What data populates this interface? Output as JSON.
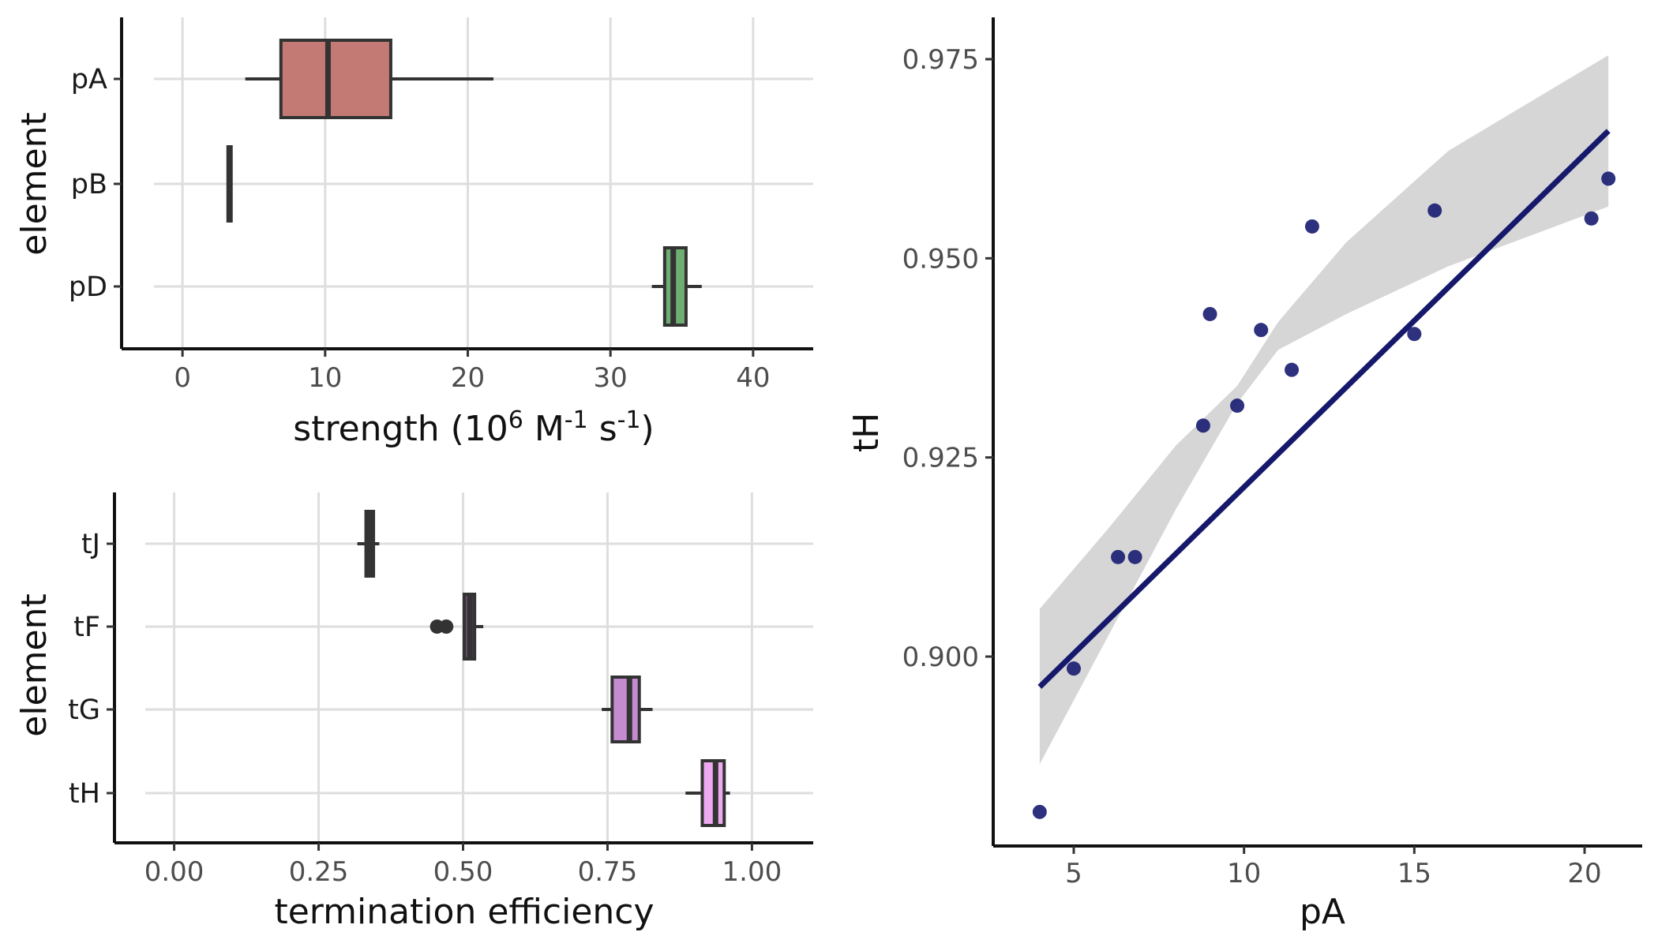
{
  "chart_data": [
    {
      "type": "box",
      "panel": "top-left",
      "xlabel_parts": {
        "main": "strength (10",
        "exp1": "6",
        "unit1": " M",
        "exp2": "-1",
        "unit2": " s",
        "exp3": "-1",
        "end": ")"
      },
      "ylabel": "element",
      "xlim": [
        -2,
        42
      ],
      "xticks": [
        0,
        10,
        20,
        30,
        40
      ],
      "xtick_labels": [
        "0",
        "10",
        "20",
        "30",
        "40"
      ],
      "categories": [
        "pA",
        "pB",
        "pD"
      ],
      "boxes": [
        {
          "label": "pA",
          "whisker_low": 4.4,
          "q1": 6.9,
          "median": 10.2,
          "q3": 14.6,
          "whisker_high": 21.8,
          "fill": "#c47a74",
          "outliers": []
        },
        {
          "label": "pB",
          "whisker_low": 3.3,
          "q1": 3.3,
          "median": 3.3,
          "q3": 3.3,
          "whisker_high": 3.3,
          "fill": "#a3a3a3",
          "outliers": []
        },
        {
          "label": "pD",
          "whisker_low": 32.9,
          "q1": 33.8,
          "median": 34.4,
          "q3": 35.3,
          "whisker_high": 36.4,
          "fill": "#6fae73",
          "outliers": []
        }
      ],
      "grid": true
    },
    {
      "type": "box",
      "panel": "bottom-left",
      "xlabel": "termination efficiency",
      "ylabel": "element",
      "xlim": [
        -0.05,
        1.05
      ],
      "xticks": [
        0,
        0.25,
        0.5,
        0.75,
        1.0
      ],
      "xtick_labels": [
        "0.00",
        "0.25",
        "0.50",
        "0.75",
        "1.00"
      ],
      "categories": [
        "tJ",
        "tF",
        "tG",
        "tH"
      ],
      "boxes": [
        {
          "label": "tJ",
          "whisker_low": 0.317,
          "q1": 0.332,
          "median": 0.338,
          "q3": 0.345,
          "whisker_high": 0.355,
          "fill": "#4a5a3c",
          "outliers": []
        },
        {
          "label": "tF",
          "whisker_low": 0.5,
          "q1": 0.502,
          "median": 0.512,
          "q3": 0.52,
          "whisker_high": 0.535,
          "fill": "#6e4a72",
          "outliers": [
            0.455,
            0.471
          ]
        },
        {
          "label": "tG",
          "whisker_low": 0.74,
          "q1": 0.758,
          "median": 0.788,
          "q3": 0.805,
          "whisker_high": 0.828,
          "fill": "#c58bd0",
          "outliers": []
        },
        {
          "label": "tH",
          "whisker_low": 0.885,
          "q1": 0.914,
          "median": 0.937,
          "q3": 0.952,
          "whisker_high": 0.962,
          "fill": "#edaaf0",
          "outliers": []
        }
      ],
      "grid": true
    },
    {
      "type": "scatter",
      "panel": "right",
      "xlabel": "pA",
      "ylabel": "tH",
      "xlim": [
        3.6,
        21.4
      ],
      "ylim": [
        0.876,
        0.98
      ],
      "xticks": [
        5,
        10,
        15,
        20
      ],
      "xtick_labels": [
        "5",
        "10",
        "15",
        "20"
      ],
      "yticks": [
        0.9,
        0.925,
        0.95,
        0.975
      ],
      "ytick_labels": [
        "0.900",
        "0.925",
        "0.950",
        "0.975"
      ],
      "points": [
        {
          "x": 4.0,
          "y": 0.8805
        },
        {
          "x": 5.0,
          "y": 0.8985
        },
        {
          "x": 6.3,
          "y": 0.9125
        },
        {
          "x": 6.8,
          "y": 0.9125
        },
        {
          "x": 8.8,
          "y": 0.929
        },
        {
          "x": 9.0,
          "y": 0.943
        },
        {
          "x": 9.8,
          "y": 0.9315
        },
        {
          "x": 10.5,
          "y": 0.941
        },
        {
          "x": 11.4,
          "y": 0.936
        },
        {
          "x": 12.0,
          "y": 0.954
        },
        {
          "x": 15.0,
          "y": 0.9405
        },
        {
          "x": 15.6,
          "y": 0.956
        },
        {
          "x": 20.2,
          "y": 0.955
        },
        {
          "x": 20.7,
          "y": 0.96
        }
      ],
      "fit_line": {
        "x": [
          4.0,
          20.7
        ],
        "y": [
          0.8962,
          0.966
        ]
      },
      "confidence_band": {
        "x": [
          4.0,
          6.0,
          8.0,
          9.8,
          11.0,
          13.0,
          16.0,
          20.7
        ],
        "lower": [
          0.8865,
          0.9025,
          0.9185,
          0.9318,
          0.9385,
          0.943,
          0.949,
          0.9565
        ],
        "upper": [
          0.906,
          0.916,
          0.9265,
          0.934,
          0.942,
          0.952,
          0.9635,
          0.9755
        ]
      },
      "colors": {
        "points": "#1b1f73",
        "line": "#15186b",
        "band": "#d6d6d6"
      },
      "grid": false
    }
  ]
}
